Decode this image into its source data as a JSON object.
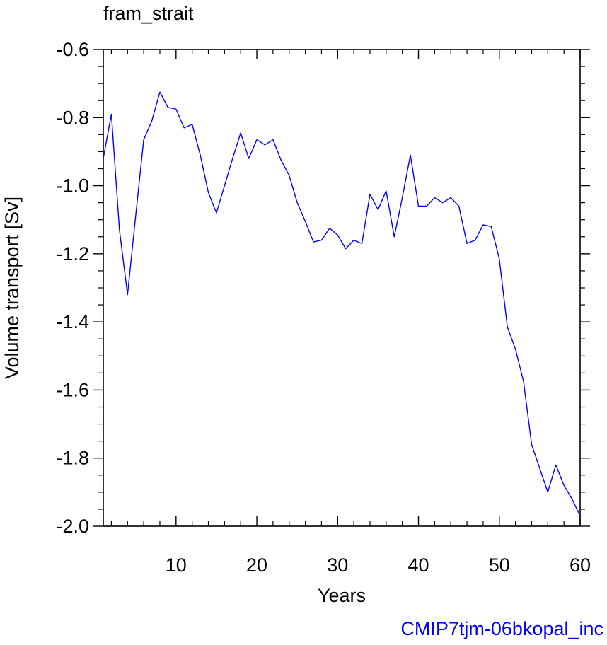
{
  "chart_data": {
    "type": "line",
    "title": "fram_strait",
    "xlabel": "Years",
    "ylabel": "Volume transport [Sv]",
    "caption": "CMIP7tjm-06bkopal_inc",
    "xlim": [
      1,
      60
    ],
    "ylim": [
      -2.0,
      -0.6
    ],
    "xticks": [
      10,
      20,
      30,
      40,
      50,
      60
    ],
    "xtick_labels": [
      "10",
      "20",
      "30",
      "40",
      "50",
      "60"
    ],
    "yticks": [
      -0.6,
      -0.8,
      -1.0,
      -1.2,
      -1.4,
      -1.6,
      -1.8,
      -2.0
    ],
    "ytick_labels": [
      "-0.6",
      "-0.8",
      "-1.0",
      "-1.2",
      "-1.4",
      "-1.6",
      "-1.8",
      "-2.0"
    ],
    "grid": false,
    "colors": {
      "line": "#0000ff",
      "caption": "#0000ff",
      "axes": "#000000"
    },
    "series": [
      {
        "x": [
          1,
          2,
          3,
          4,
          5,
          6,
          7,
          8,
          9,
          10,
          11,
          12,
          13,
          14,
          15,
          16,
          17,
          18,
          19,
          20,
          21,
          22,
          23,
          24,
          25,
          26,
          27,
          28,
          29,
          30,
          31,
          32,
          33,
          34,
          35,
          36,
          37,
          38,
          39,
          40,
          41,
          42,
          43,
          44,
          45,
          46,
          47,
          48,
          49,
          50,
          51,
          52,
          53,
          54,
          55,
          56,
          57,
          58,
          59,
          60
        ],
        "values": [
          -0.92,
          -0.79,
          -1.13,
          -1.32,
          -1.09,
          -0.865,
          -0.81,
          -0.725,
          -0.77,
          -0.775,
          -0.83,
          -0.82,
          -0.91,
          -1.02,
          -1.08,
          -1.0,
          -0.92,
          -0.845,
          -0.92,
          -0.865,
          -0.88,
          -0.865,
          -0.925,
          -0.97,
          -1.05,
          -1.105,
          -1.165,
          -1.16,
          -1.125,
          -1.145,
          -1.185,
          -1.16,
          -1.17,
          -1.025,
          -1.07,
          -1.015,
          -1.15,
          -1.035,
          -0.91,
          -1.06,
          -1.06,
          -1.035,
          -1.05,
          -1.035,
          -1.06,
          -1.17,
          -1.16,
          -1.115,
          -1.12,
          -1.215,
          -1.415,
          -1.48,
          -1.575,
          -1.76,
          -1.83,
          -1.9,
          -1.82,
          -1.88,
          -1.92,
          -1.97
        ]
      }
    ]
  }
}
